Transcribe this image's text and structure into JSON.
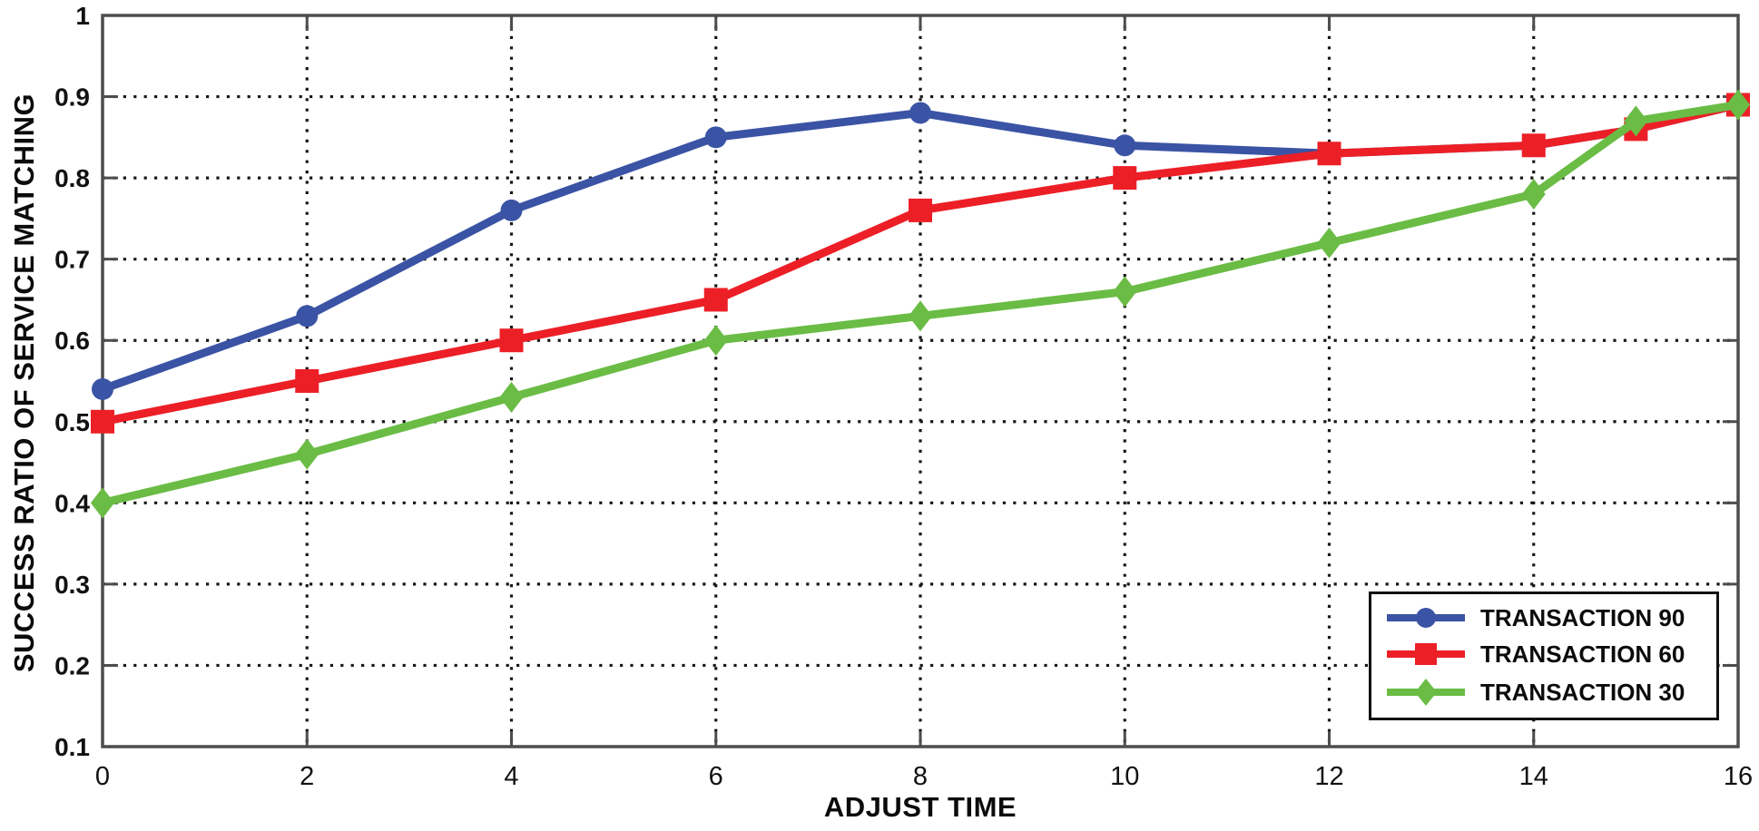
{
  "chart_data": {
    "type": "line",
    "title": "",
    "xlabel": "ADJUST TIME",
    "ylabel": "SUCCESS RATIO OF SERVICE MATCHING",
    "x": [
      0,
      2,
      4,
      6,
      8,
      10,
      12,
      14,
      15,
      16
    ],
    "xlim": [
      0,
      16
    ],
    "ylim": [
      0.1,
      1.0
    ],
    "x_ticks": [
      0,
      2,
      4,
      6,
      8,
      10,
      12,
      14,
      16
    ],
    "x_tick_labels": [
      "0",
      "2",
      "4",
      "6",
      "8",
      "10",
      "12",
      "14",
      "16"
    ],
    "y_ticks": [
      0.1,
      0.2,
      0.3,
      0.4,
      0.5,
      0.6,
      0.7,
      0.8,
      0.9,
      1.0
    ],
    "y_tick_labels": [
      "0.1",
      "0.2",
      "0.3",
      "0.4",
      "0.5",
      "0.6",
      "0.7",
      "0.8",
      "0.9",
      "1"
    ],
    "grid": "dotted",
    "legend_position": "lower right",
    "series": [
      {
        "name": "TRANSACTION 90",
        "color": "#3A53A4",
        "marker": "circle",
        "values": [
          0.54,
          0.63,
          0.76,
          0.85,
          0.88,
          0.84,
          0.83,
          0.84,
          0.86,
          0.89
        ]
      },
      {
        "name": "TRANSACTION 60",
        "color": "#EC1F27",
        "marker": "square",
        "values": [
          0.5,
          0.55,
          0.6,
          0.65,
          0.76,
          0.8,
          0.83,
          0.84,
          0.86,
          0.89
        ]
      },
      {
        "name": "TRANSACTION 30",
        "color": "#6ABC45",
        "marker": "diamond",
        "values": [
          0.4,
          0.46,
          0.53,
          0.6,
          0.63,
          0.66,
          0.72,
          0.78,
          0.87,
          0.89
        ]
      }
    ]
  },
  "style": {
    "axis_color": "#4D4D4D",
    "grid_color": "#171717",
    "tick_label_color": "#111111",
    "background": "#FFFFFF"
  }
}
